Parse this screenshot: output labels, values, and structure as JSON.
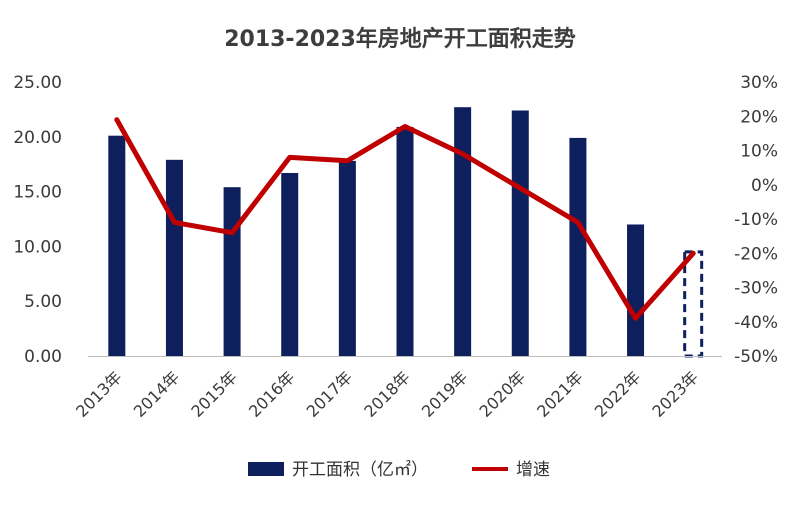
{
  "chart_data": {
    "type": "bar",
    "title": "2013-2023年房地产开工面积走势",
    "categories": [
      "2013年",
      "2014年",
      "2015年",
      "2016年",
      "2017年",
      "2018年",
      "2019年",
      "2020年",
      "2021年",
      "2022年",
      "2023年"
    ],
    "series": [
      {
        "name": "开工面积（亿㎡）",
        "type": "bar",
        "axis": "left",
        "color": "#0d1f5c",
        "values": [
          20.1,
          17.9,
          15.4,
          16.7,
          17.8,
          20.9,
          22.7,
          22.4,
          19.9,
          12.0,
          9.5
        ],
        "estimated_last": true
      },
      {
        "name": "增速",
        "type": "line",
        "axis": "right",
        "color": "#c00000",
        "values": [
          0.19,
          -0.11,
          -0.14,
          0.08,
          0.07,
          0.17,
          0.09,
          -0.01,
          -0.11,
          -0.39,
          -0.2
        ]
      }
    ],
    "y_left": {
      "min": 0,
      "max": 25,
      "step": 5,
      "tick_labels": [
        "0.00",
        "5.00",
        "10.00",
        "15.00",
        "20.00",
        "25.00"
      ]
    },
    "y_right": {
      "min": -0.5,
      "max": 0.3,
      "step": 0.1,
      "tick_labels": [
        "-50%",
        "-40%",
        "-30%",
        "-20%",
        "-10%",
        "0%",
        "10%",
        "20%",
        "30%"
      ]
    },
    "grid": false,
    "legend_position": "bottom"
  }
}
